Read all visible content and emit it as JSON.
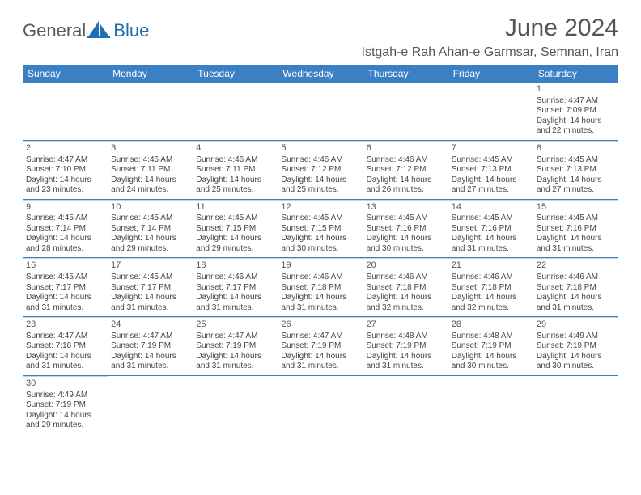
{
  "brand": {
    "name": "GeneralBlue",
    "text_color": "#5a5a5a",
    "accent": "#1f6fb2"
  },
  "title": "June 2024",
  "location": "Istgah-e Rah Ahan-e Garmsar, Semnan, Iran",
  "colors": {
    "header_bg": "#3b7fc4",
    "header_text": "#ffffff",
    "rule": "#3b7fc4",
    "cell_rule": "#d0d0d0",
    "text": "#444444",
    "title_text": "#555555",
    "background": "#ffffff"
  },
  "typography": {
    "title_fontsize": 30,
    "location_fontsize": 16,
    "dayhead_fontsize": 12,
    "cell_fontsize": 10,
    "logo_fontsize": 22
  },
  "day_headers": [
    "Sunday",
    "Monday",
    "Tuesday",
    "Wednesday",
    "Thursday",
    "Friday",
    "Saturday"
  ],
  "weeks": [
    [
      null,
      null,
      null,
      null,
      null,
      null,
      {
        "d": "1",
        "sunrise": "4:47 AM",
        "sunset": "7:09 PM",
        "daylight": "14 hours and 22 minutes."
      }
    ],
    [
      {
        "d": "2",
        "sunrise": "4:47 AM",
        "sunset": "7:10 PM",
        "daylight": "14 hours and 23 minutes."
      },
      {
        "d": "3",
        "sunrise": "4:46 AM",
        "sunset": "7:11 PM",
        "daylight": "14 hours and 24 minutes."
      },
      {
        "d": "4",
        "sunrise": "4:46 AM",
        "sunset": "7:11 PM",
        "daylight": "14 hours and 25 minutes."
      },
      {
        "d": "5",
        "sunrise": "4:46 AM",
        "sunset": "7:12 PM",
        "daylight": "14 hours and 25 minutes."
      },
      {
        "d": "6",
        "sunrise": "4:46 AM",
        "sunset": "7:12 PM",
        "daylight": "14 hours and 26 minutes."
      },
      {
        "d": "7",
        "sunrise": "4:45 AM",
        "sunset": "7:13 PM",
        "daylight": "14 hours and 27 minutes."
      },
      {
        "d": "8",
        "sunrise": "4:45 AM",
        "sunset": "7:13 PM",
        "daylight": "14 hours and 27 minutes."
      }
    ],
    [
      {
        "d": "9",
        "sunrise": "4:45 AM",
        "sunset": "7:14 PM",
        "daylight": "14 hours and 28 minutes."
      },
      {
        "d": "10",
        "sunrise": "4:45 AM",
        "sunset": "7:14 PM",
        "daylight": "14 hours and 29 minutes."
      },
      {
        "d": "11",
        "sunrise": "4:45 AM",
        "sunset": "7:15 PM",
        "daylight": "14 hours and 29 minutes."
      },
      {
        "d": "12",
        "sunrise": "4:45 AM",
        "sunset": "7:15 PM",
        "daylight": "14 hours and 30 minutes."
      },
      {
        "d": "13",
        "sunrise": "4:45 AM",
        "sunset": "7:16 PM",
        "daylight": "14 hours and 30 minutes."
      },
      {
        "d": "14",
        "sunrise": "4:45 AM",
        "sunset": "7:16 PM",
        "daylight": "14 hours and 31 minutes."
      },
      {
        "d": "15",
        "sunrise": "4:45 AM",
        "sunset": "7:16 PM",
        "daylight": "14 hours and 31 minutes."
      }
    ],
    [
      {
        "d": "16",
        "sunrise": "4:45 AM",
        "sunset": "7:17 PM",
        "daylight": "14 hours and 31 minutes."
      },
      {
        "d": "17",
        "sunrise": "4:45 AM",
        "sunset": "7:17 PM",
        "daylight": "14 hours and 31 minutes."
      },
      {
        "d": "18",
        "sunrise": "4:46 AM",
        "sunset": "7:17 PM",
        "daylight": "14 hours and 31 minutes."
      },
      {
        "d": "19",
        "sunrise": "4:46 AM",
        "sunset": "7:18 PM",
        "daylight": "14 hours and 31 minutes."
      },
      {
        "d": "20",
        "sunrise": "4:46 AM",
        "sunset": "7:18 PM",
        "daylight": "14 hours and 32 minutes."
      },
      {
        "d": "21",
        "sunrise": "4:46 AM",
        "sunset": "7:18 PM",
        "daylight": "14 hours and 32 minutes."
      },
      {
        "d": "22",
        "sunrise": "4:46 AM",
        "sunset": "7:18 PM",
        "daylight": "14 hours and 31 minutes."
      }
    ],
    [
      {
        "d": "23",
        "sunrise": "4:47 AM",
        "sunset": "7:18 PM",
        "daylight": "14 hours and 31 minutes."
      },
      {
        "d": "24",
        "sunrise": "4:47 AM",
        "sunset": "7:19 PM",
        "daylight": "14 hours and 31 minutes."
      },
      {
        "d": "25",
        "sunrise": "4:47 AM",
        "sunset": "7:19 PM",
        "daylight": "14 hours and 31 minutes."
      },
      {
        "d": "26",
        "sunrise": "4:47 AM",
        "sunset": "7:19 PM",
        "daylight": "14 hours and 31 minutes."
      },
      {
        "d": "27",
        "sunrise": "4:48 AM",
        "sunset": "7:19 PM",
        "daylight": "14 hours and 31 minutes."
      },
      {
        "d": "28",
        "sunrise": "4:48 AM",
        "sunset": "7:19 PM",
        "daylight": "14 hours and 30 minutes."
      },
      {
        "d": "29",
        "sunrise": "4:49 AM",
        "sunset": "7:19 PM",
        "daylight": "14 hours and 30 minutes."
      }
    ],
    [
      {
        "d": "30",
        "sunrise": "4:49 AM",
        "sunset": "7:19 PM",
        "daylight": "14 hours and 29 minutes."
      },
      null,
      null,
      null,
      null,
      null,
      null
    ]
  ],
  "labels": {
    "sunrise": "Sunrise:",
    "sunset": "Sunset:",
    "daylight": "Daylight:"
  }
}
